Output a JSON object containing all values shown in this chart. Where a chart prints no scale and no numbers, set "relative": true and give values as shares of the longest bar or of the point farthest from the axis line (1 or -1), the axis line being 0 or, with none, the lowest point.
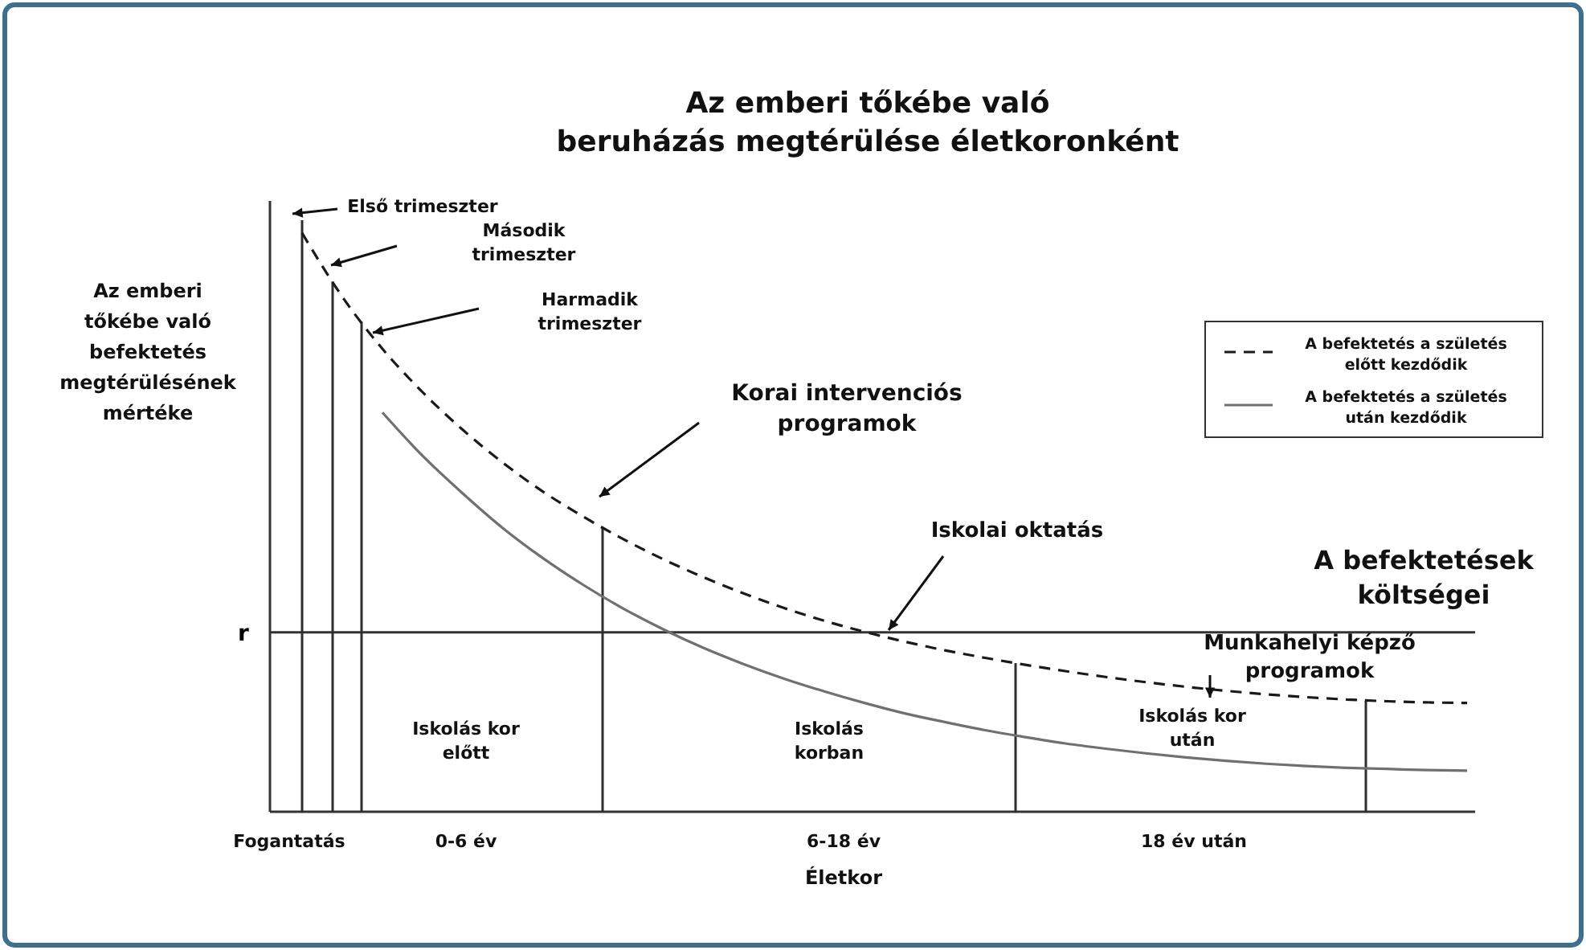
{
  "chart_data": {
    "type": "line",
    "relative": true,
    "title": "Az emberi tőkébe való beruházás megtérülése életkoronként",
    "xlabel": "Életkor",
    "ylabel": "Az emberi tőkébe való befektetés megtérülésének mértéke",
    "categories": [
      null,
      null,
      null,
      null,
      null,
      null,
      null,
      null,
      null,
      null,
      null,
      null,
      null,
      null,
      null,
      null,
      null,
      null,
      null,
      null,
      null,
      null,
      null,
      null,
      null,
      null,
      null,
      null,
      null,
      null
    ],
    "series": [
      {
        "name": "A befektetés a születés előtt kezdődik",
        "color": "#1a1a1a",
        "line_style": "dashed",
        "values": [
          1.0,
          0.89,
          0.8,
          0.725,
          0.66,
          0.603,
          0.553,
          0.51,
          0.471,
          0.436,
          0.405,
          0.377,
          0.352,
          0.33,
          0.311,
          0.294,
          0.279,
          0.266,
          0.254,
          0.243,
          0.233,
          0.224,
          0.216,
          0.209,
          0.203,
          0.198,
          0.194,
          0.191,
          0.189,
          0.188
        ]
      },
      {
        "name": "A befektetés a születés után kezdődik",
        "color": "#707070",
        "line_style": "solid",
        "values": [
          null,
          null,
          0.69,
          0.615,
          0.55,
          0.49,
          0.438,
          0.392,
          0.351,
          0.315,
          0.283,
          0.255,
          0.23,
          0.208,
          0.188,
          0.17,
          0.155,
          0.141,
          0.129,
          0.118,
          0.109,
          0.101,
          0.094,
          0.088,
          0.083,
          0.079,
          0.076,
          0.074,
          0.072,
          0.071
        ]
      }
    ],
    "ref_lines": [
      {
        "axis": "y",
        "value": 0.31,
        "label": "r"
      }
    ],
    "legend": "top right",
    "annotations": [
      "Első trimeszter",
      "Második trimeszter",
      "Harmadik trimeszter",
      "Korai intervenciós programok",
      "Iskolai oktatás",
      "A befektetések költségei",
      "Munkahelyi képző programok",
      "Iskolás kor előtt",
      "Iskolás korban",
      "Iskolás kor után",
      "Fogantatás",
      "0-6 év",
      "6-18 év",
      "18 év után"
    ]
  }
}
